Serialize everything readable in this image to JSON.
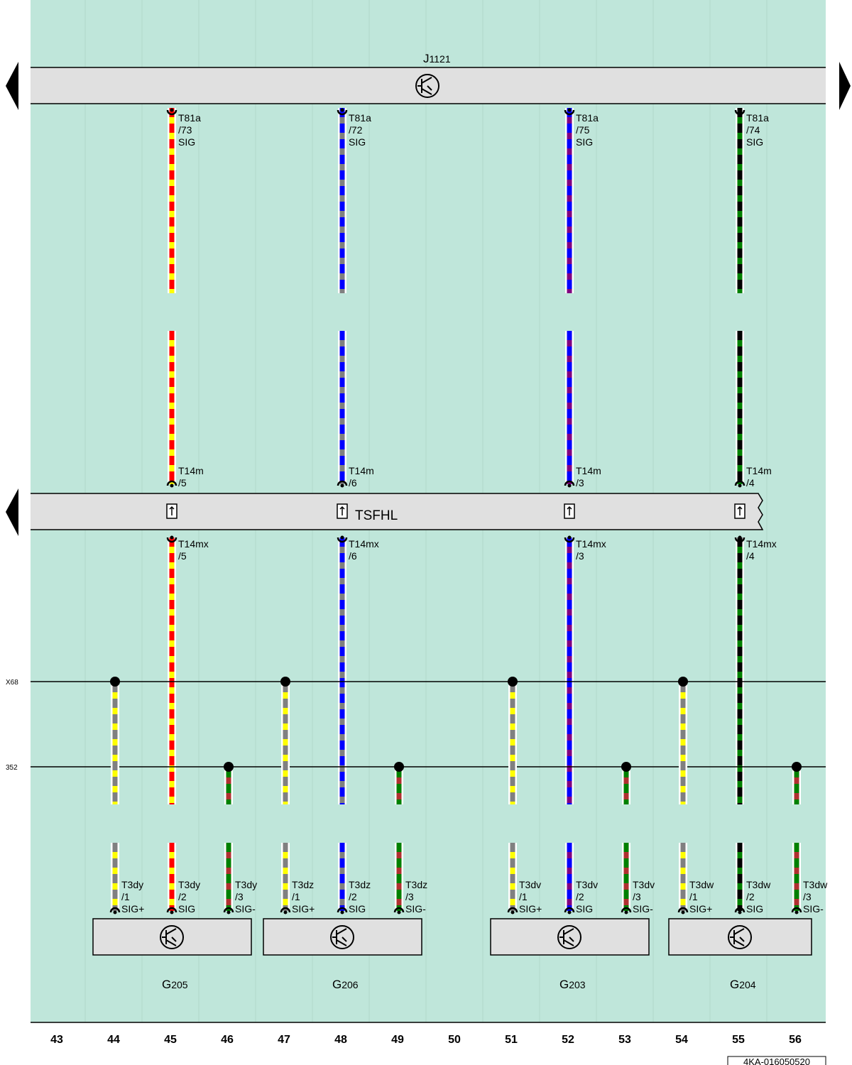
{
  "top_module": {
    "letter": "J",
    "number": "1121"
  },
  "harness": {
    "label": "TSFHL"
  },
  "connectors_top": [
    {
      "name": "T81a",
      "pin": "/73",
      "signal": "SIG"
    },
    {
      "name": "T81a",
      "pin": "/72",
      "signal": "SIG"
    },
    {
      "name": "T81a",
      "pin": "/75",
      "signal": "SIG"
    },
    {
      "name": "T81a",
      "pin": "/74",
      "signal": "SIG"
    }
  ],
  "connectors_upper": [
    {
      "name": "T14m",
      "pin": "/5"
    },
    {
      "name": "T14m",
      "pin": "/6"
    },
    {
      "name": "T14m",
      "pin": "/3"
    },
    {
      "name": "T14m",
      "pin": "/4"
    }
  ],
  "connectors_lower": [
    {
      "name": "T14mx",
      "pin": "/5"
    },
    {
      "name": "T14mx",
      "pin": "/6"
    },
    {
      "name": "T14mx",
      "pin": "/3"
    },
    {
      "name": "T14mx",
      "pin": "/4"
    }
  ],
  "lines": [
    {
      "label": "X68"
    },
    {
      "label": "352"
    }
  ],
  "sensors": [
    {
      "letter": "G",
      "number": "205",
      "pins": [
        {
          "name": "T3dy",
          "pin": "/1",
          "signal": "SIG+"
        },
        {
          "name": "T3dy",
          "pin": "/2",
          "signal": "SIG"
        },
        {
          "name": "T3dy",
          "pin": "/3",
          "signal": "SIG-"
        }
      ]
    },
    {
      "letter": "G",
      "number": "206",
      "pins": [
        {
          "name": "T3dz",
          "pin": "/1",
          "signal": "SIG+"
        },
        {
          "name": "T3dz",
          "pin": "/2",
          "signal": "SIG"
        },
        {
          "name": "T3dz",
          "pin": "/3",
          "signal": "SIG-"
        }
      ]
    },
    {
      "letter": "G",
      "number": "203",
      "pins": [
        {
          "name": "T3dv",
          "pin": "/1",
          "signal": "SIG+"
        },
        {
          "name": "T3dv",
          "pin": "/2",
          "signal": "SIG"
        },
        {
          "name": "T3dv",
          "pin": "/3",
          "signal": "SIG-"
        }
      ]
    },
    {
      "letter": "G",
      "number": "204",
      "pins": [
        {
          "name": "T3dw",
          "pin": "/1",
          "signal": "SIG+"
        },
        {
          "name": "T3dw",
          "pin": "/2",
          "signal": "SIG"
        },
        {
          "name": "T3dw",
          "pin": "/3",
          "signal": "SIG-"
        }
      ]
    }
  ],
  "columns": [
    43,
    44,
    45,
    46,
    47,
    48,
    49,
    50,
    51,
    52,
    53,
    54,
    55,
    56
  ],
  "footer": {
    "code": "4KA-016050520"
  }
}
